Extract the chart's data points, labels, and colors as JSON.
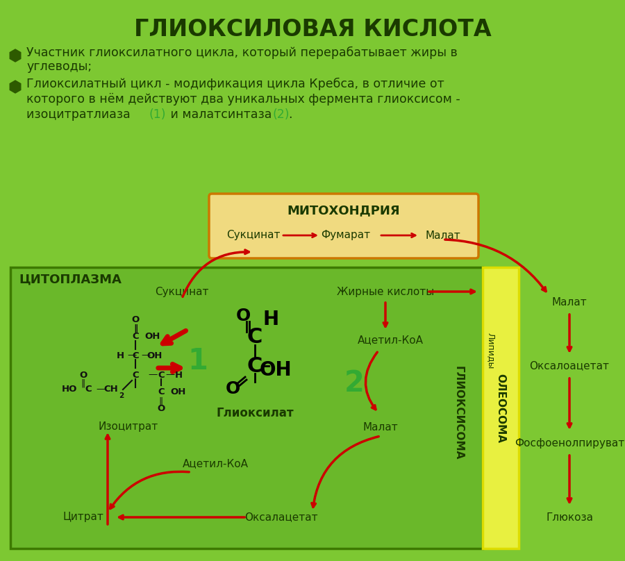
{
  "title": "ГЛИОКСИЛОВАЯ КИСЛОТА",
  "bg_color": "#7dc832",
  "title_color": "#1a3a00",
  "text_color": "#1a3a00",
  "arrow_color": "#cc0000",
  "bullet_color": "#2d5a00",
  "num_color": "#33aa33",
  "mito_label": "МИТОХОНДРИЯ",
  "mito_border": "#cc7700",
  "mito_bg": "#f0da80",
  "cytoplasm_label": "ЦИТОПЛАЗМА",
  "cyto_border": "#3d7a00",
  "cyto_bg": "#6ab82a",
  "oleosoma_label": "ОЛЕОСОМА",
  "oleosoma_border": "#dddd00",
  "oleosoma_bg": "#e8f040",
  "glyoxisome_label": "ГЛИОКСИСОМА",
  "lipidy_label": "Липиды",
  "sukcinat_mito": "Сукцинат",
  "fumarat_mito": "Фумарат",
  "malat_mito": "Малат",
  "sukcinat_cyto": "Сукцинат",
  "zhirn_kisloty": "Жирные кислоты",
  "acetil_koa1": "Ацетил-КоА",
  "acetil_koa2": "Ацетил-КоА",
  "malat_cyto": "Малат",
  "malat_right": "Малат",
  "oksaloacetat_cyto": "Оксалацетат",
  "oksaloacetat_right": "Оксалоацетат",
  "izocitrat": "Изоцитрат",
  "citrat": "Цитрат",
  "glyoxilat_label": "Глиоксилат",
  "fosfoenolpiruvat": "Фосфоенолпируват",
  "glukoза": "Глюкоза",
  "num1": "1",
  "num2": "2"
}
